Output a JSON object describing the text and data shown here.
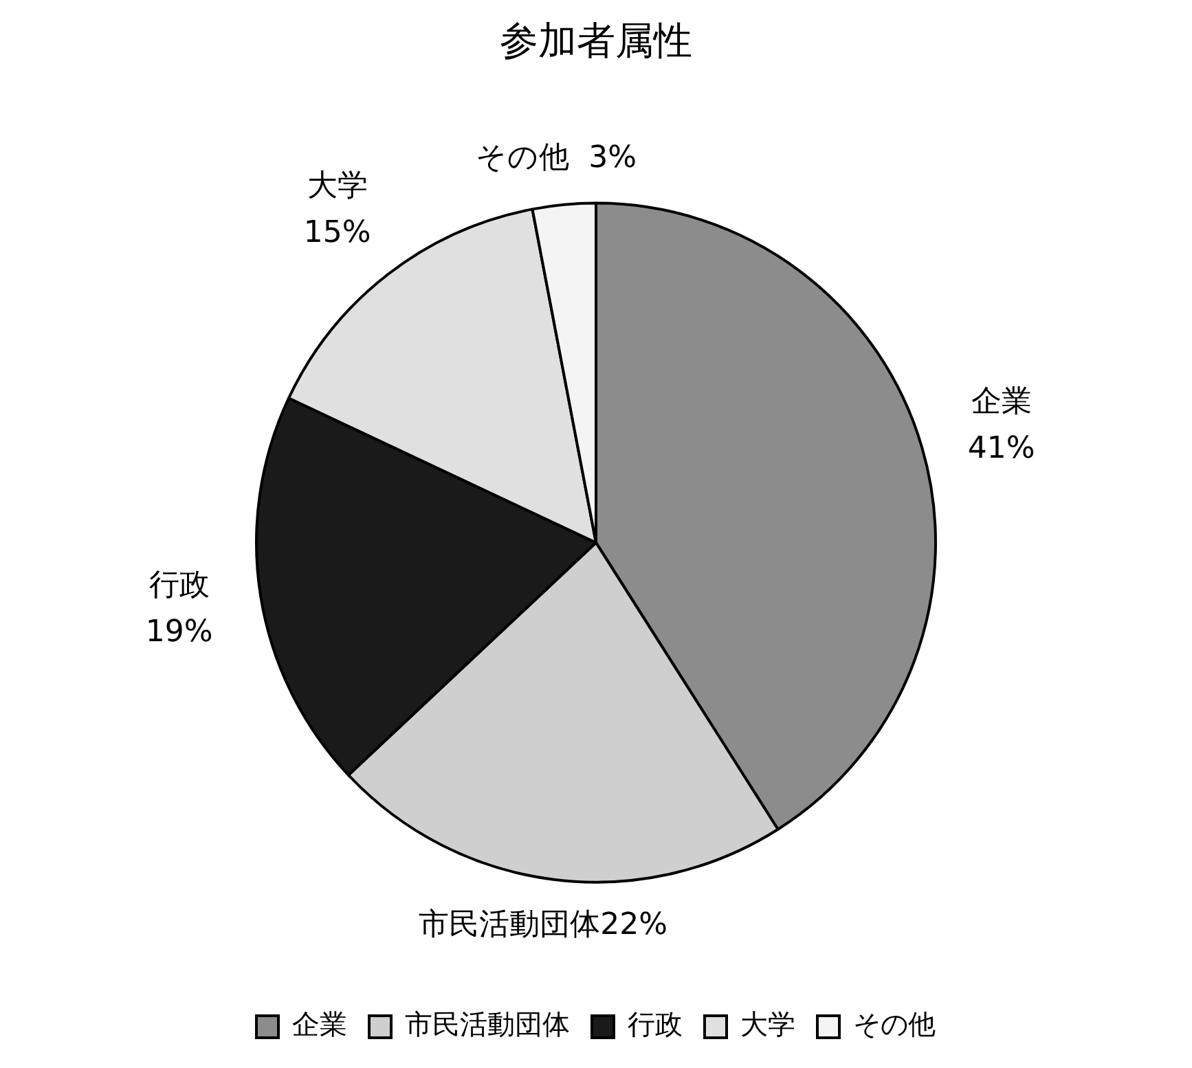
{
  "chart_data": {
    "type": "pie",
    "title": "参加者属性",
    "categories": [
      "企業",
      "市民活動団体",
      "行政",
      "大学",
      "その他"
    ],
    "values": [
      41,
      22,
      19,
      15,
      3
    ],
    "value_labels": [
      "41%",
      "22%",
      "19%",
      "15%",
      "3%"
    ],
    "colors": [
      "#8c8c8c",
      "#cfcfcf",
      "#1a1a1a",
      "#e0e0e0",
      "#f4f4f4"
    ],
    "legend": "bottom"
  }
}
